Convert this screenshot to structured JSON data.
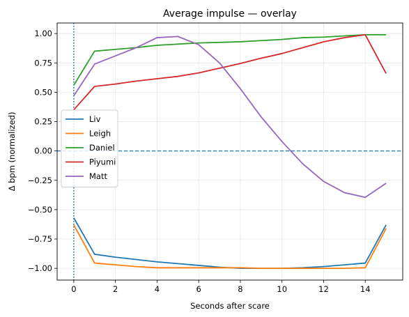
{
  "chart_data": {
    "type": "line",
    "title": "Average impulse — overlay",
    "xlabel": "Seconds after scare",
    "ylabel": "Δ bpm (normalized)",
    "xlim": [
      -0.8,
      15.8
    ],
    "ylim": [
      -1.1,
      1.09
    ],
    "xticks": [
      0,
      2,
      4,
      6,
      8,
      10,
      12,
      14
    ],
    "xtick_labels": [
      "0",
      "2",
      "4",
      "6",
      "8",
      "10",
      "12",
      "14"
    ],
    "yticks": [
      1.0,
      0.75,
      0.5,
      0.25,
      0.0,
      -0.25,
      -0.5,
      -0.75,
      -1.0
    ],
    "ytick_labels": [
      "1.00",
      "0.75",
      "0.50",
      "0.25",
      "0.00",
      "−0.25",
      "−0.50",
      "−0.75",
      "−1.00"
    ],
    "grid": true,
    "legend_position": "center-left",
    "reference_lines": [
      {
        "orientation": "horizontal",
        "value": 0,
        "style": "dashed",
        "color": "#1f77b4"
      },
      {
        "orientation": "vertical",
        "value": 0,
        "style": "dotted",
        "color": "#1f77b4"
      }
    ],
    "x": [
      0,
      1,
      2,
      3,
      4,
      5,
      6,
      7,
      8,
      9,
      10,
      11,
      12,
      13,
      14,
      15
    ],
    "series": [
      {
        "name": "Liv",
        "color": "#1f77b4",
        "values": [
          -0.57,
          -0.88,
          -0.905,
          -0.925,
          -0.945,
          -0.96,
          -0.975,
          -0.99,
          -1.0,
          -1.0,
          -1.0,
          -0.995,
          -0.985,
          -0.97,
          -0.955,
          -0.63
        ]
      },
      {
        "name": "Leigh",
        "color": "#ff7f0e",
        "values": [
          -0.63,
          -0.955,
          -0.97,
          -0.985,
          -0.995,
          -0.995,
          -0.995,
          -0.995,
          -0.995,
          -1.0,
          -1.0,
          -1.0,
          -1.0,
          -1.0,
          -0.995,
          -0.66
        ]
      },
      {
        "name": "Daniel",
        "color": "#2ca02c",
        "values": [
          0.56,
          0.85,
          0.865,
          0.88,
          0.9,
          0.91,
          0.92,
          0.925,
          0.93,
          0.94,
          0.95,
          0.965,
          0.97,
          0.98,
          0.99,
          0.99
        ]
      },
      {
        "name": "Piyumi",
        "color": "#d62728",
        "values": [
          0.35,
          0.55,
          0.57,
          0.595,
          0.615,
          0.635,
          0.665,
          0.705,
          0.745,
          0.79,
          0.83,
          0.88,
          0.93,
          0.965,
          0.99,
          0.66
        ]
      },
      {
        "name": "Matt",
        "color": "#9467bd",
        "values": [
          0.47,
          0.74,
          0.81,
          0.88,
          0.965,
          0.975,
          0.905,
          0.75,
          0.53,
          0.29,
          0.08,
          -0.11,
          -0.26,
          -0.355,
          -0.395,
          -0.275
        ]
      }
    ]
  }
}
